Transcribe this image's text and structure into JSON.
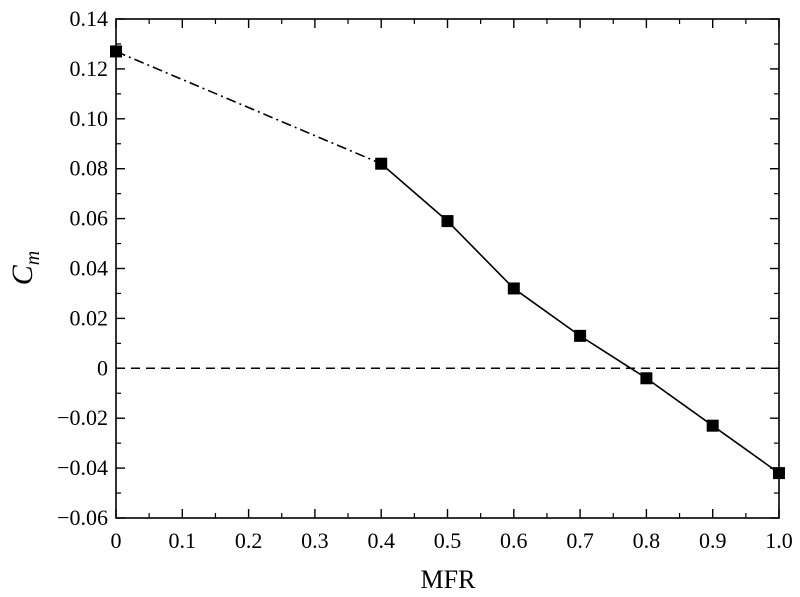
{
  "chart_data": {
    "type": "line",
    "title": "",
    "xlabel": "MFR",
    "ylabel": {
      "main": "C",
      "sub": "m"
    },
    "xlim": [
      0,
      1.0
    ],
    "ylim": [
      -0.06,
      0.14
    ],
    "grid": false,
    "x_ticks": [
      0,
      0.1,
      0.2,
      0.3,
      0.4,
      0.5,
      0.6,
      0.7,
      0.8,
      0.9,
      1.0
    ],
    "x_tick_labels": [
      "0",
      "0.1",
      "0.2",
      "0.3",
      "0.4",
      "0.5",
      "0.6",
      "0.7",
      "0.8",
      "0.9",
      "1.0"
    ],
    "y_ticks": [
      -0.06,
      -0.04,
      -0.02,
      0,
      0.02,
      0.04,
      0.06,
      0.08,
      0.1,
      0.12,
      0.14
    ],
    "y_tick_labels": [
      "−0.06",
      "−0.04",
      "−0.02",
      "0",
      "0.02",
      "0.04",
      "0.06",
      "0.08",
      "0.10",
      "0.12",
      "0.14"
    ],
    "series": [
      {
        "x": [
          0,
          0.4,
          0.5,
          0.6,
          0.7,
          0.8,
          0.9,
          1.0
        ],
        "y": [
          0.127,
          0.082,
          0.059,
          0.032,
          0.013,
          -0.004,
          -0.023,
          -0.042
        ],
        "marker": "square",
        "color": "#000000"
      }
    ],
    "segments": [
      {
        "from": 0.0,
        "to": 0.4,
        "style": "dash-dot"
      },
      {
        "from": 0.4,
        "to": 1.0,
        "style": "solid"
      }
    ],
    "reference_lines": [
      {
        "axis": "y",
        "value": 0,
        "style": "dashed"
      }
    ]
  }
}
